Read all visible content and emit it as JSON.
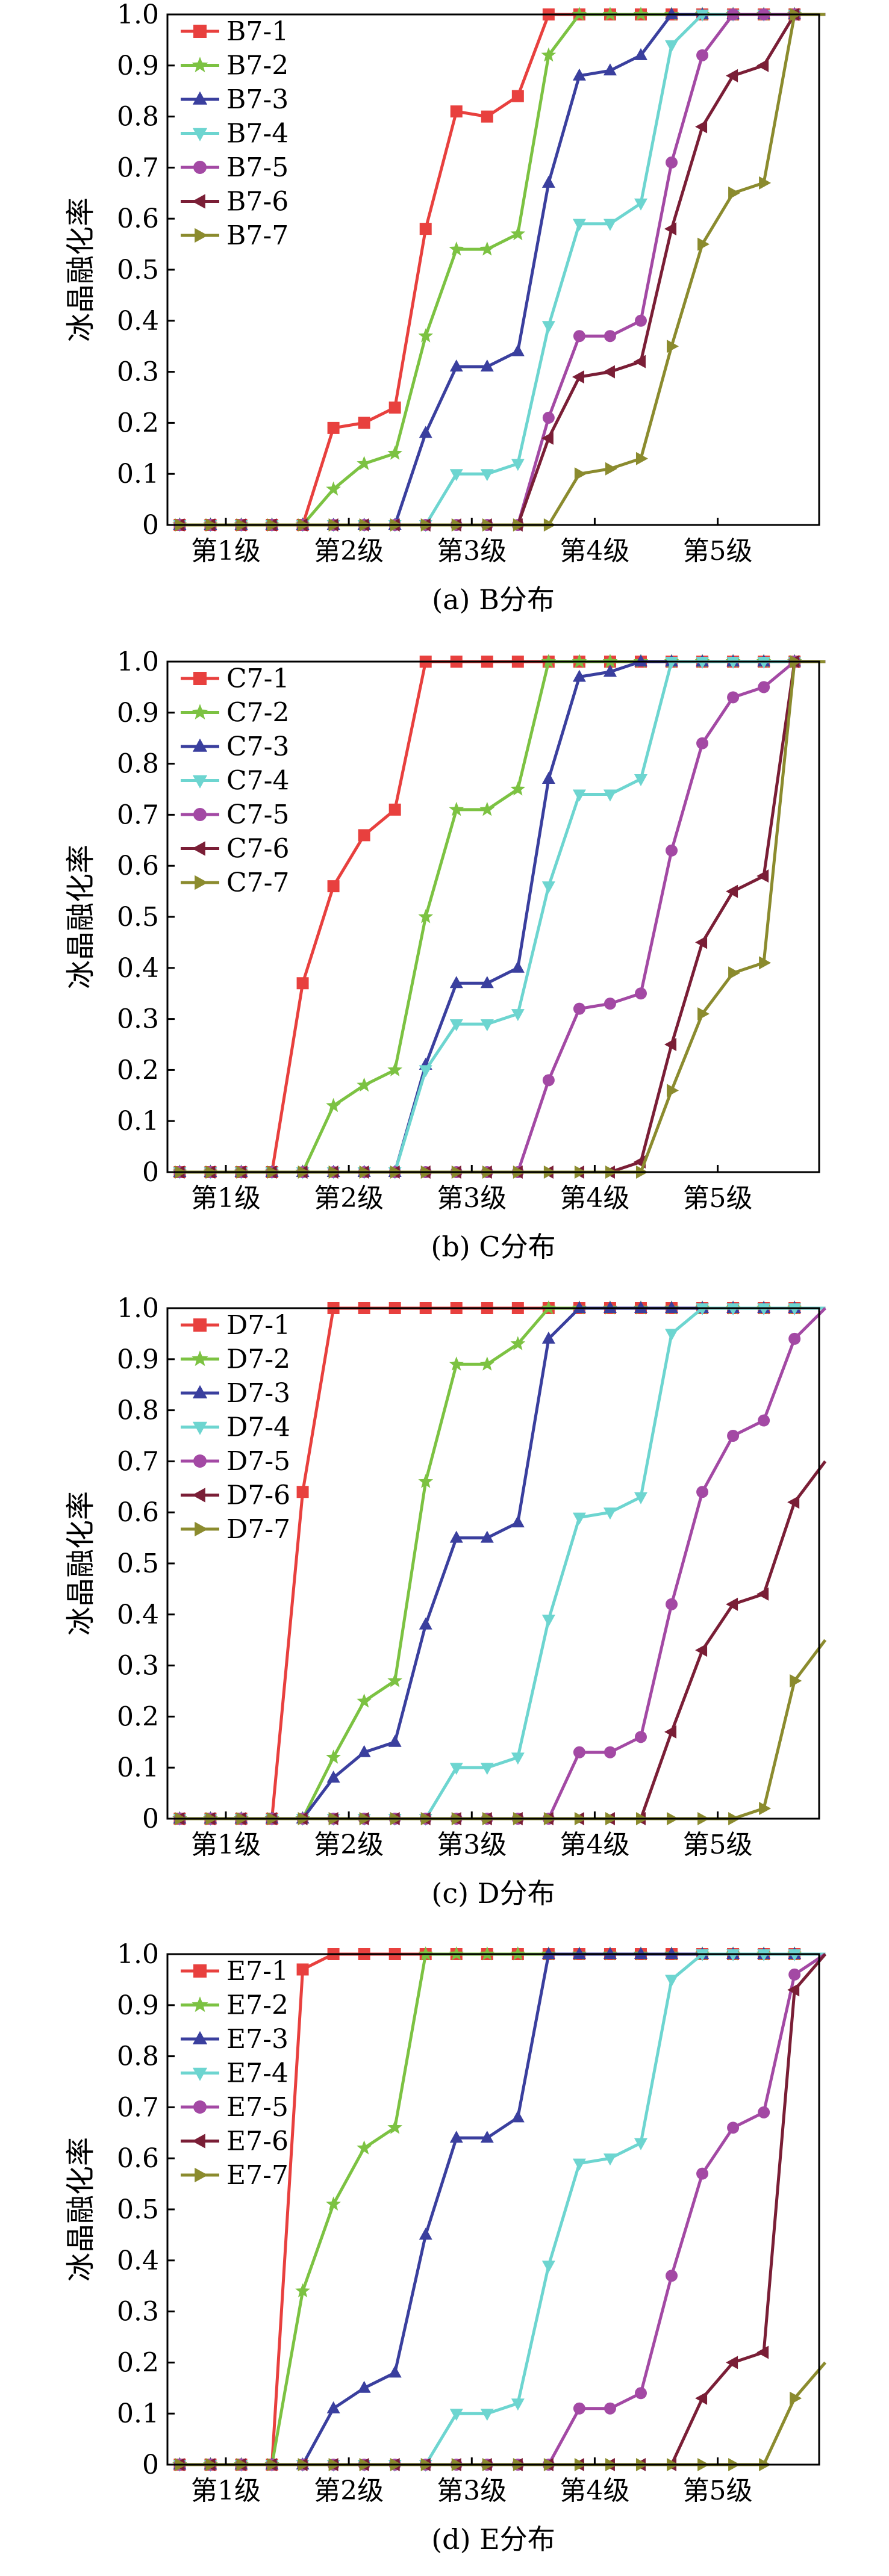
{
  "chart_data": [
    {
      "type": "line",
      "caption": "(a) B分布",
      "ylabel": "冰晶融化率",
      "x_tick_labels": [
        "第1级",
        "第2级",
        "第3级",
        "第4级",
        "第5级"
      ],
      "y_tick_labels": [
        "0",
        "0.1",
        "0.2",
        "0.3",
        "0.4",
        "0.5",
        "0.6",
        "0.7",
        "0.8",
        "0.9",
        "1.0"
      ],
      "ylim": [
        0,
        1.0
      ],
      "xlim": [
        0.6,
        21.8
      ],
      "legend_position": "top-left",
      "x": [
        1,
        2,
        3,
        4,
        5,
        6,
        7,
        8,
        9,
        10,
        11,
        12,
        13,
        14,
        15,
        16,
        17,
        18,
        19,
        20,
        21,
        22
      ],
      "series": [
        {
          "name": "B7-1",
          "color": "#e8403e",
          "marker": "square",
          "values": [
            0,
            0,
            0,
            0,
            0,
            0.19,
            0.2,
            0.23,
            0.58,
            0.81,
            0.8,
            0.84,
            1.0,
            1.0,
            1.0,
            1.0,
            1.0,
            1.0,
            1.0,
            1.0,
            1.0,
            1.0
          ]
        },
        {
          "name": "B7-2",
          "color": "#7cc242",
          "marker": "star",
          "values": [
            0,
            0,
            0,
            0,
            0,
            0.07,
            0.12,
            0.14,
            0.37,
            0.54,
            0.54,
            0.57,
            0.92,
            1.0,
            1.0,
            1.0,
            1.0,
            1.0,
            1.0,
            1.0,
            1.0,
            1.0
          ]
        },
        {
          "name": "B7-3",
          "color": "#3a3f9e",
          "marker": "triangle-up",
          "values": [
            0,
            0,
            0,
            0,
            0,
            0,
            0,
            0,
            0.18,
            0.31,
            0.31,
            0.34,
            0.67,
            0.88,
            0.89,
            0.92,
            1.0,
            1.0,
            1.0,
            1.0,
            1.0,
            1.0
          ]
        },
        {
          "name": "B7-4",
          "color": "#6dd5d0",
          "marker": "triangle-down",
          "values": [
            0,
            0,
            0,
            0,
            0,
            0,
            0,
            0,
            0,
            0.1,
            0.1,
            0.12,
            0.39,
            0.59,
            0.59,
            0.63,
            0.94,
            1.0,
            1.0,
            1.0,
            1.0,
            1.0
          ]
        },
        {
          "name": "B7-5",
          "color": "#a349a4",
          "marker": "circle",
          "values": [
            0,
            0,
            0,
            0,
            0,
            0,
            0,
            0,
            0,
            0,
            0,
            0,
            0.21,
            0.37,
            0.37,
            0.4,
            0.71,
            0.92,
            1.0,
            1.0,
            1.0,
            1.0
          ]
        },
        {
          "name": "B7-6",
          "color": "#7a1e36",
          "marker": "triangle-left",
          "values": [
            0,
            0,
            0,
            0,
            0,
            0,
            0,
            0,
            0,
            0,
            0,
            0,
            0.17,
            0.29,
            0.3,
            0.32,
            0.58,
            0.78,
            0.88,
            0.9,
            1.0,
            1.0
          ]
        },
        {
          "name": "B7-7",
          "color": "#8b8b2e",
          "marker": "triangle-right",
          "values": [
            0,
            0,
            0,
            0,
            0,
            0,
            0,
            0,
            0,
            0,
            0,
            0,
            0,
            0.1,
            0.11,
            0.13,
            0.35,
            0.55,
            0.65,
            0.67,
            1.0,
            1.0
          ]
        }
      ]
    },
    {
      "type": "line",
      "caption": "(b) C分布",
      "ylabel": "冰晶融化率",
      "x_tick_labels": [
        "第1级",
        "第2级",
        "第3级",
        "第4级",
        "第5级"
      ],
      "y_tick_labels": [
        "0",
        "0.1",
        "0.2",
        "0.3",
        "0.4",
        "0.5",
        "0.6",
        "0.7",
        "0.8",
        "0.9",
        "1.0"
      ],
      "ylim": [
        0,
        1.0
      ],
      "xlim": [
        0.6,
        21.8
      ],
      "legend_position": "top-left",
      "x": [
        1,
        2,
        3,
        4,
        5,
        6,
        7,
        8,
        9,
        10,
        11,
        12,
        13,
        14,
        15,
        16,
        17,
        18,
        19,
        20,
        21,
        22
      ],
      "series": [
        {
          "name": "C7-1",
          "color": "#e8403e",
          "marker": "square",
          "values": [
            0,
            0,
            0,
            0,
            0.37,
            0.56,
            0.66,
            0.71,
            1.0,
            1.0,
            1.0,
            1.0,
            1.0,
            1.0,
            1.0,
            1.0,
            1.0,
            1.0,
            1.0,
            1.0,
            1.0,
            1.0
          ]
        },
        {
          "name": "C7-2",
          "color": "#7cc242",
          "marker": "star",
          "values": [
            0,
            0,
            0,
            0,
            0,
            0.13,
            0.17,
            0.2,
            0.5,
            0.71,
            0.71,
            0.75,
            1.0,
            1.0,
            1.0,
            1.0,
            1.0,
            1.0,
            1.0,
            1.0,
            1.0,
            1.0
          ]
        },
        {
          "name": "C7-3",
          "color": "#3a3f9e",
          "marker": "triangle-up",
          "values": [
            0,
            0,
            0,
            0,
            0,
            0,
            0,
            0,
            0.21,
            0.37,
            0.37,
            0.4,
            0.77,
            0.97,
            0.98,
            1.0,
            1.0,
            1.0,
            1.0,
            1.0,
            1.0,
            1.0
          ]
        },
        {
          "name": "C7-4",
          "color": "#6dd5d0",
          "marker": "triangle-down",
          "values": [
            0,
            0,
            0,
            0,
            0,
            0,
            0,
            0,
            0.2,
            0.29,
            0.29,
            0.31,
            0.56,
            0.74,
            0.74,
            0.77,
            1.0,
            1.0,
            1.0,
            1.0,
            1.0,
            1.0
          ]
        },
        {
          "name": "C7-5",
          "color": "#a349a4",
          "marker": "circle",
          "values": [
            0,
            0,
            0,
            0,
            0,
            0,
            0,
            0,
            0,
            0,
            0,
            0,
            0.18,
            0.32,
            0.33,
            0.35,
            0.63,
            0.84,
            0.93,
            0.95,
            1.0,
            1.0
          ]
        },
        {
          "name": "C7-6",
          "color": "#7a1e36",
          "marker": "triangle-left",
          "values": [
            0,
            0,
            0,
            0,
            0,
            0,
            0,
            0,
            0,
            0,
            0,
            0,
            0,
            0,
            0,
            0.02,
            0.25,
            0.45,
            0.55,
            0.58,
            1.0,
            1.0
          ]
        },
        {
          "name": "C7-7",
          "color": "#8b8b2e",
          "marker": "triangle-right",
          "values": [
            0,
            0,
            0,
            0,
            0,
            0,
            0,
            0,
            0,
            0,
            0,
            0,
            0,
            0,
            0,
            0,
            0.16,
            0.31,
            0.39,
            0.41,
            1.0,
            1.0
          ]
        }
      ]
    },
    {
      "type": "line",
      "caption": "(c) D分布",
      "ylabel": "冰晶融化率",
      "x_tick_labels": [
        "第1级",
        "第2级",
        "第3级",
        "第4级",
        "第5级"
      ],
      "y_tick_labels": [
        "0",
        "0.1",
        "0.2",
        "0.3",
        "0.4",
        "0.5",
        "0.6",
        "0.7",
        "0.8",
        "0.9",
        "1.0"
      ],
      "ylim": [
        0,
        1.0
      ],
      "xlim": [
        0.6,
        21.8
      ],
      "legend_position": "top-left",
      "x": [
        1,
        2,
        3,
        4,
        5,
        6,
        7,
        8,
        9,
        10,
        11,
        12,
        13,
        14,
        15,
        16,
        17,
        18,
        19,
        20,
        21,
        22
      ],
      "series": [
        {
          "name": "D7-1",
          "color": "#e8403e",
          "marker": "square",
          "values": [
            0,
            0,
            0,
            0,
            0.64,
            1.0,
            1.0,
            1.0,
            1.0,
            1.0,
            1.0,
            1.0,
            1.0,
            1.0,
            1.0,
            1.0,
            1.0,
            1.0,
            1.0,
            1.0,
            1.0,
            1.0
          ]
        },
        {
          "name": "D7-2",
          "color": "#7cc242",
          "marker": "star",
          "values": [
            0,
            0,
            0,
            0,
            0,
            0.12,
            0.23,
            0.27,
            0.66,
            0.89,
            0.89,
            0.93,
            1.0,
            1.0,
            1.0,
            1.0,
            1.0,
            1.0,
            1.0,
            1.0,
            1.0,
            1.0
          ]
        },
        {
          "name": "D7-3",
          "color": "#3a3f9e",
          "marker": "triangle-up",
          "values": [
            0,
            0,
            0,
            0,
            0,
            0.08,
            0.13,
            0.15,
            0.38,
            0.55,
            0.55,
            0.58,
            0.94,
            1.0,
            1.0,
            1.0,
            1.0,
            1.0,
            1.0,
            1.0,
            1.0,
            1.0
          ]
        },
        {
          "name": "D7-4",
          "color": "#6dd5d0",
          "marker": "triangle-down",
          "values": [
            0,
            0,
            0,
            0,
            0,
            0,
            0,
            0,
            0,
            0.1,
            0.1,
            0.12,
            0.39,
            0.59,
            0.6,
            0.63,
            0.95,
            1.0,
            1.0,
            1.0,
            1.0,
            1.0
          ]
        },
        {
          "name": "D7-5",
          "color": "#a349a4",
          "marker": "circle",
          "values": [
            0,
            0,
            0,
            0,
            0,
            0,
            0,
            0,
            0,
            0,
            0,
            0,
            0,
            0.13,
            0.13,
            0.16,
            0.42,
            0.64,
            0.75,
            0.78,
            0.94,
            1.0
          ]
        },
        {
          "name": "D7-6",
          "color": "#7a1e36",
          "marker": "triangle-left",
          "values": [
            0,
            0,
            0,
            0,
            0,
            0,
            0,
            0,
            0,
            0,
            0,
            0,
            0,
            0,
            0,
            0,
            0.17,
            0.33,
            0.42,
            0.44,
            0.62,
            0.7
          ]
        },
        {
          "name": "D7-7",
          "color": "#8b8b2e",
          "marker": "triangle-right",
          "values": [
            0,
            0,
            0,
            0,
            0,
            0,
            0,
            0,
            0,
            0,
            0,
            0,
            0,
            0,
            0,
            0,
            0,
            0,
            0,
            0.02,
            0.27,
            0.35
          ]
        }
      ]
    },
    {
      "type": "line",
      "caption": "(d) E分布",
      "ylabel": "冰晶融化率",
      "x_tick_labels": [
        "第1级",
        "第2级",
        "第3级",
        "第4级",
        "第5级"
      ],
      "y_tick_labels": [
        "0",
        "0.1",
        "0.2",
        "0.3",
        "0.4",
        "0.5",
        "0.6",
        "0.7",
        "0.8",
        "0.9",
        "1.0"
      ],
      "ylim": [
        0,
        1.0
      ],
      "xlim": [
        0.6,
        21.8
      ],
      "legend_position": "top-left",
      "x": [
        1,
        2,
        3,
        4,
        5,
        6,
        7,
        8,
        9,
        10,
        11,
        12,
        13,
        14,
        15,
        16,
        17,
        18,
        19,
        20,
        21,
        22
      ],
      "series": [
        {
          "name": "E7-1",
          "color": "#e8403e",
          "marker": "square",
          "values": [
            0,
            0,
            0,
            0,
            0.97,
            1.0,
            1.0,
            1.0,
            1.0,
            1.0,
            1.0,
            1.0,
            1.0,
            1.0,
            1.0,
            1.0,
            1.0,
            1.0,
            1.0,
            1.0,
            1.0,
            1.0
          ]
        },
        {
          "name": "E7-2",
          "color": "#7cc242",
          "marker": "star",
          "values": [
            0,
            0,
            0,
            0,
            0.34,
            0.51,
            0.62,
            0.66,
            1.0,
            1.0,
            1.0,
            1.0,
            1.0,
            1.0,
            1.0,
            1.0,
            1.0,
            1.0,
            1.0,
            1.0,
            1.0,
            1.0
          ]
        },
        {
          "name": "E7-3",
          "color": "#3a3f9e",
          "marker": "triangle-up",
          "values": [
            0,
            0,
            0,
            0,
            0,
            0.11,
            0.15,
            0.18,
            0.45,
            0.64,
            0.64,
            0.68,
            1.0,
            1.0,
            1.0,
            1.0,
            1.0,
            1.0,
            1.0,
            1.0,
            1.0,
            1.0
          ]
        },
        {
          "name": "E7-4",
          "color": "#6dd5d0",
          "marker": "triangle-down",
          "values": [
            0,
            0,
            0,
            0,
            0,
            0,
            0,
            0,
            0,
            0.1,
            0.1,
            0.12,
            0.39,
            0.59,
            0.6,
            0.63,
            0.95,
            1.0,
            1.0,
            1.0,
            1.0,
            1.0
          ]
        },
        {
          "name": "E7-5",
          "color": "#a349a4",
          "marker": "circle",
          "values": [
            0,
            0,
            0,
            0,
            0,
            0,
            0,
            0,
            0,
            0,
            0,
            0,
            0,
            0.11,
            0.11,
            0.14,
            0.37,
            0.57,
            0.66,
            0.69,
            0.96,
            1.0
          ]
        },
        {
          "name": "E7-6",
          "color": "#7a1e36",
          "marker": "triangle-left",
          "values": [
            0,
            0,
            0,
            0,
            0,
            0,
            0,
            0,
            0,
            0,
            0,
            0,
            0,
            0,
            0,
            0,
            0,
            0.13,
            0.2,
            0.22,
            0.93,
            1.0
          ]
        },
        {
          "name": "E7-7",
          "color": "#8b8b2e",
          "marker": "triangle-right",
          "values": [
            0,
            0,
            0,
            0,
            0,
            0,
            0,
            0,
            0,
            0,
            0,
            0,
            0,
            0,
            0,
            0,
            0,
            0,
            0,
            0,
            0.13,
            0.2
          ]
        }
      ]
    }
  ]
}
